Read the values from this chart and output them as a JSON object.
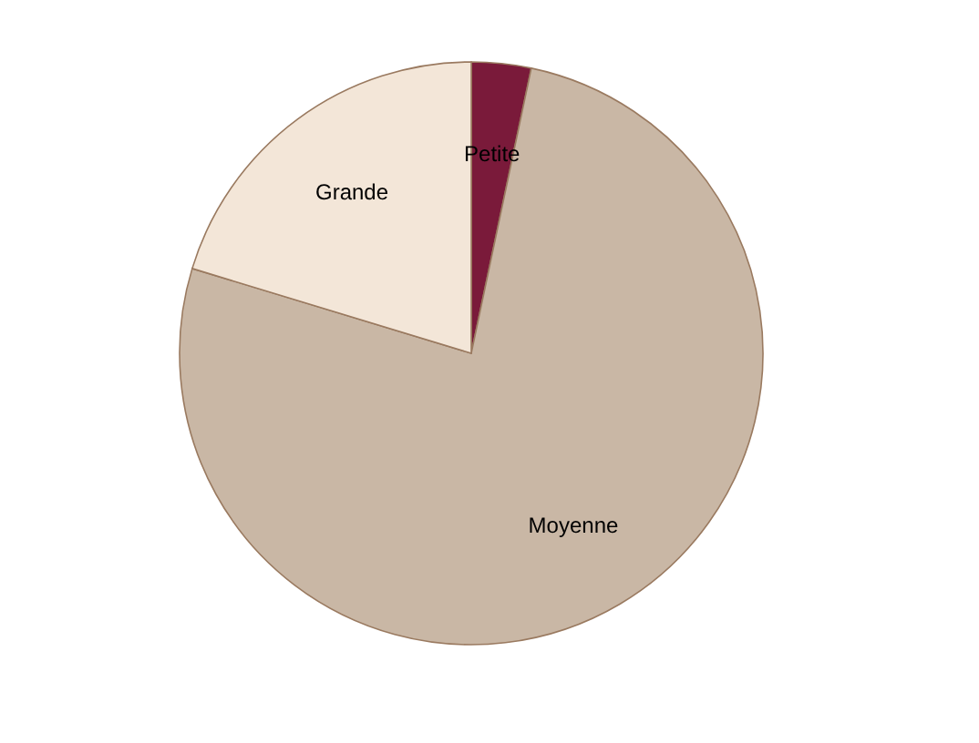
{
  "chart_data": {
    "type": "pie",
    "categories": [
      "Petite",
      "Moyenne",
      "Grande"
    ],
    "values": [
      3.3,
      76.4,
      20.3
    ],
    "colors": [
      "#7a1a3a",
      "#c9b7a5",
      "#f3e6d8"
    ],
    "legend": false
  }
}
